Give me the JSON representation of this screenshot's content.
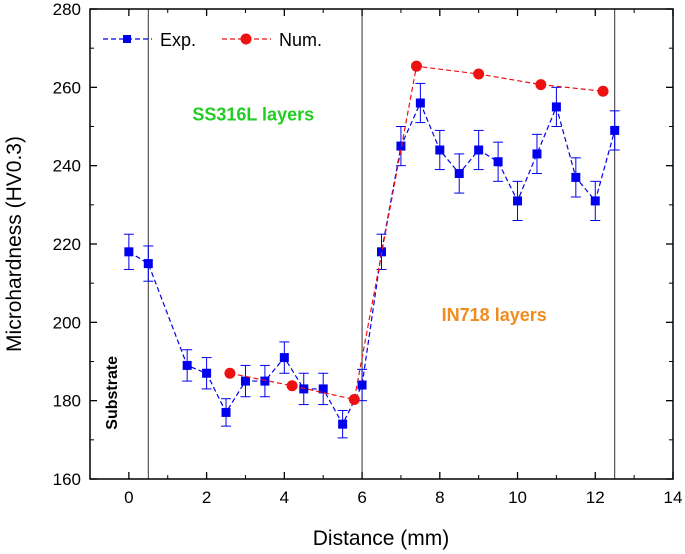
{
  "chart_data": {
    "type": "line",
    "xlabel": "Distance (mm)",
    "ylabel": "Microhardness (HV0.3)",
    "xlim": [
      -1,
      14
    ],
    "ylim": [
      160,
      280
    ],
    "xticks": [
      0,
      2,
      4,
      6,
      8,
      10,
      12,
      14
    ],
    "yticks": [
      160,
      180,
      200,
      220,
      240,
      260,
      280
    ],
    "legend_position": "top-left",
    "vertical_lines": [
      0.5,
      6,
      12.5
    ],
    "series": [
      {
        "name": "Exp.",
        "color": "#0000ee",
        "marker": "square",
        "line_style": "dashed",
        "x": [
          0,
          0.5,
          1.5,
          2,
          2.5,
          3,
          3.5,
          4,
          4.5,
          5,
          5.5,
          6,
          6.5,
          7,
          7.5,
          8,
          8.5,
          9,
          9.5,
          10,
          10.5,
          11,
          11.5,
          12,
          12.5
        ],
        "y": [
          218,
          215,
          189,
          187,
          177,
          185,
          185,
          191,
          183,
          183,
          174,
          184,
          218,
          245,
          256,
          244,
          238,
          244,
          241,
          231,
          243,
          255,
          237,
          231,
          249
        ],
        "error": [
          4.5,
          4.5,
          4,
          4,
          3.5,
          4,
          4,
          4,
          4,
          4,
          3.5,
          4,
          4.5,
          5,
          5,
          5,
          5,
          5,
          5,
          5,
          5,
          5,
          5,
          5,
          5
        ]
      },
      {
        "name": "Num.",
        "color": "#ee1111",
        "marker": "circle",
        "line_style": "dashed",
        "x": [
          2.6,
          4.2,
          5.8,
          7.4,
          9.0,
          10.6,
          12.2
        ],
        "y": [
          187,
          183.8,
          180.3,
          265.4,
          263.4,
          260.7,
          259
        ]
      }
    ],
    "annotations": [
      {
        "text": "SS316L layers",
        "x": 3.2,
        "y": 251.5,
        "color": "#22cc22",
        "rotation": 0
      },
      {
        "text": "IN718 layers",
        "x": 9.4,
        "y": 200.3,
        "color": "#f08c1e",
        "rotation": 0
      },
      {
        "text": "Substrate",
        "x": -0.3,
        "y": 182,
        "color": "#000000",
        "rotation": -90
      }
    ]
  }
}
